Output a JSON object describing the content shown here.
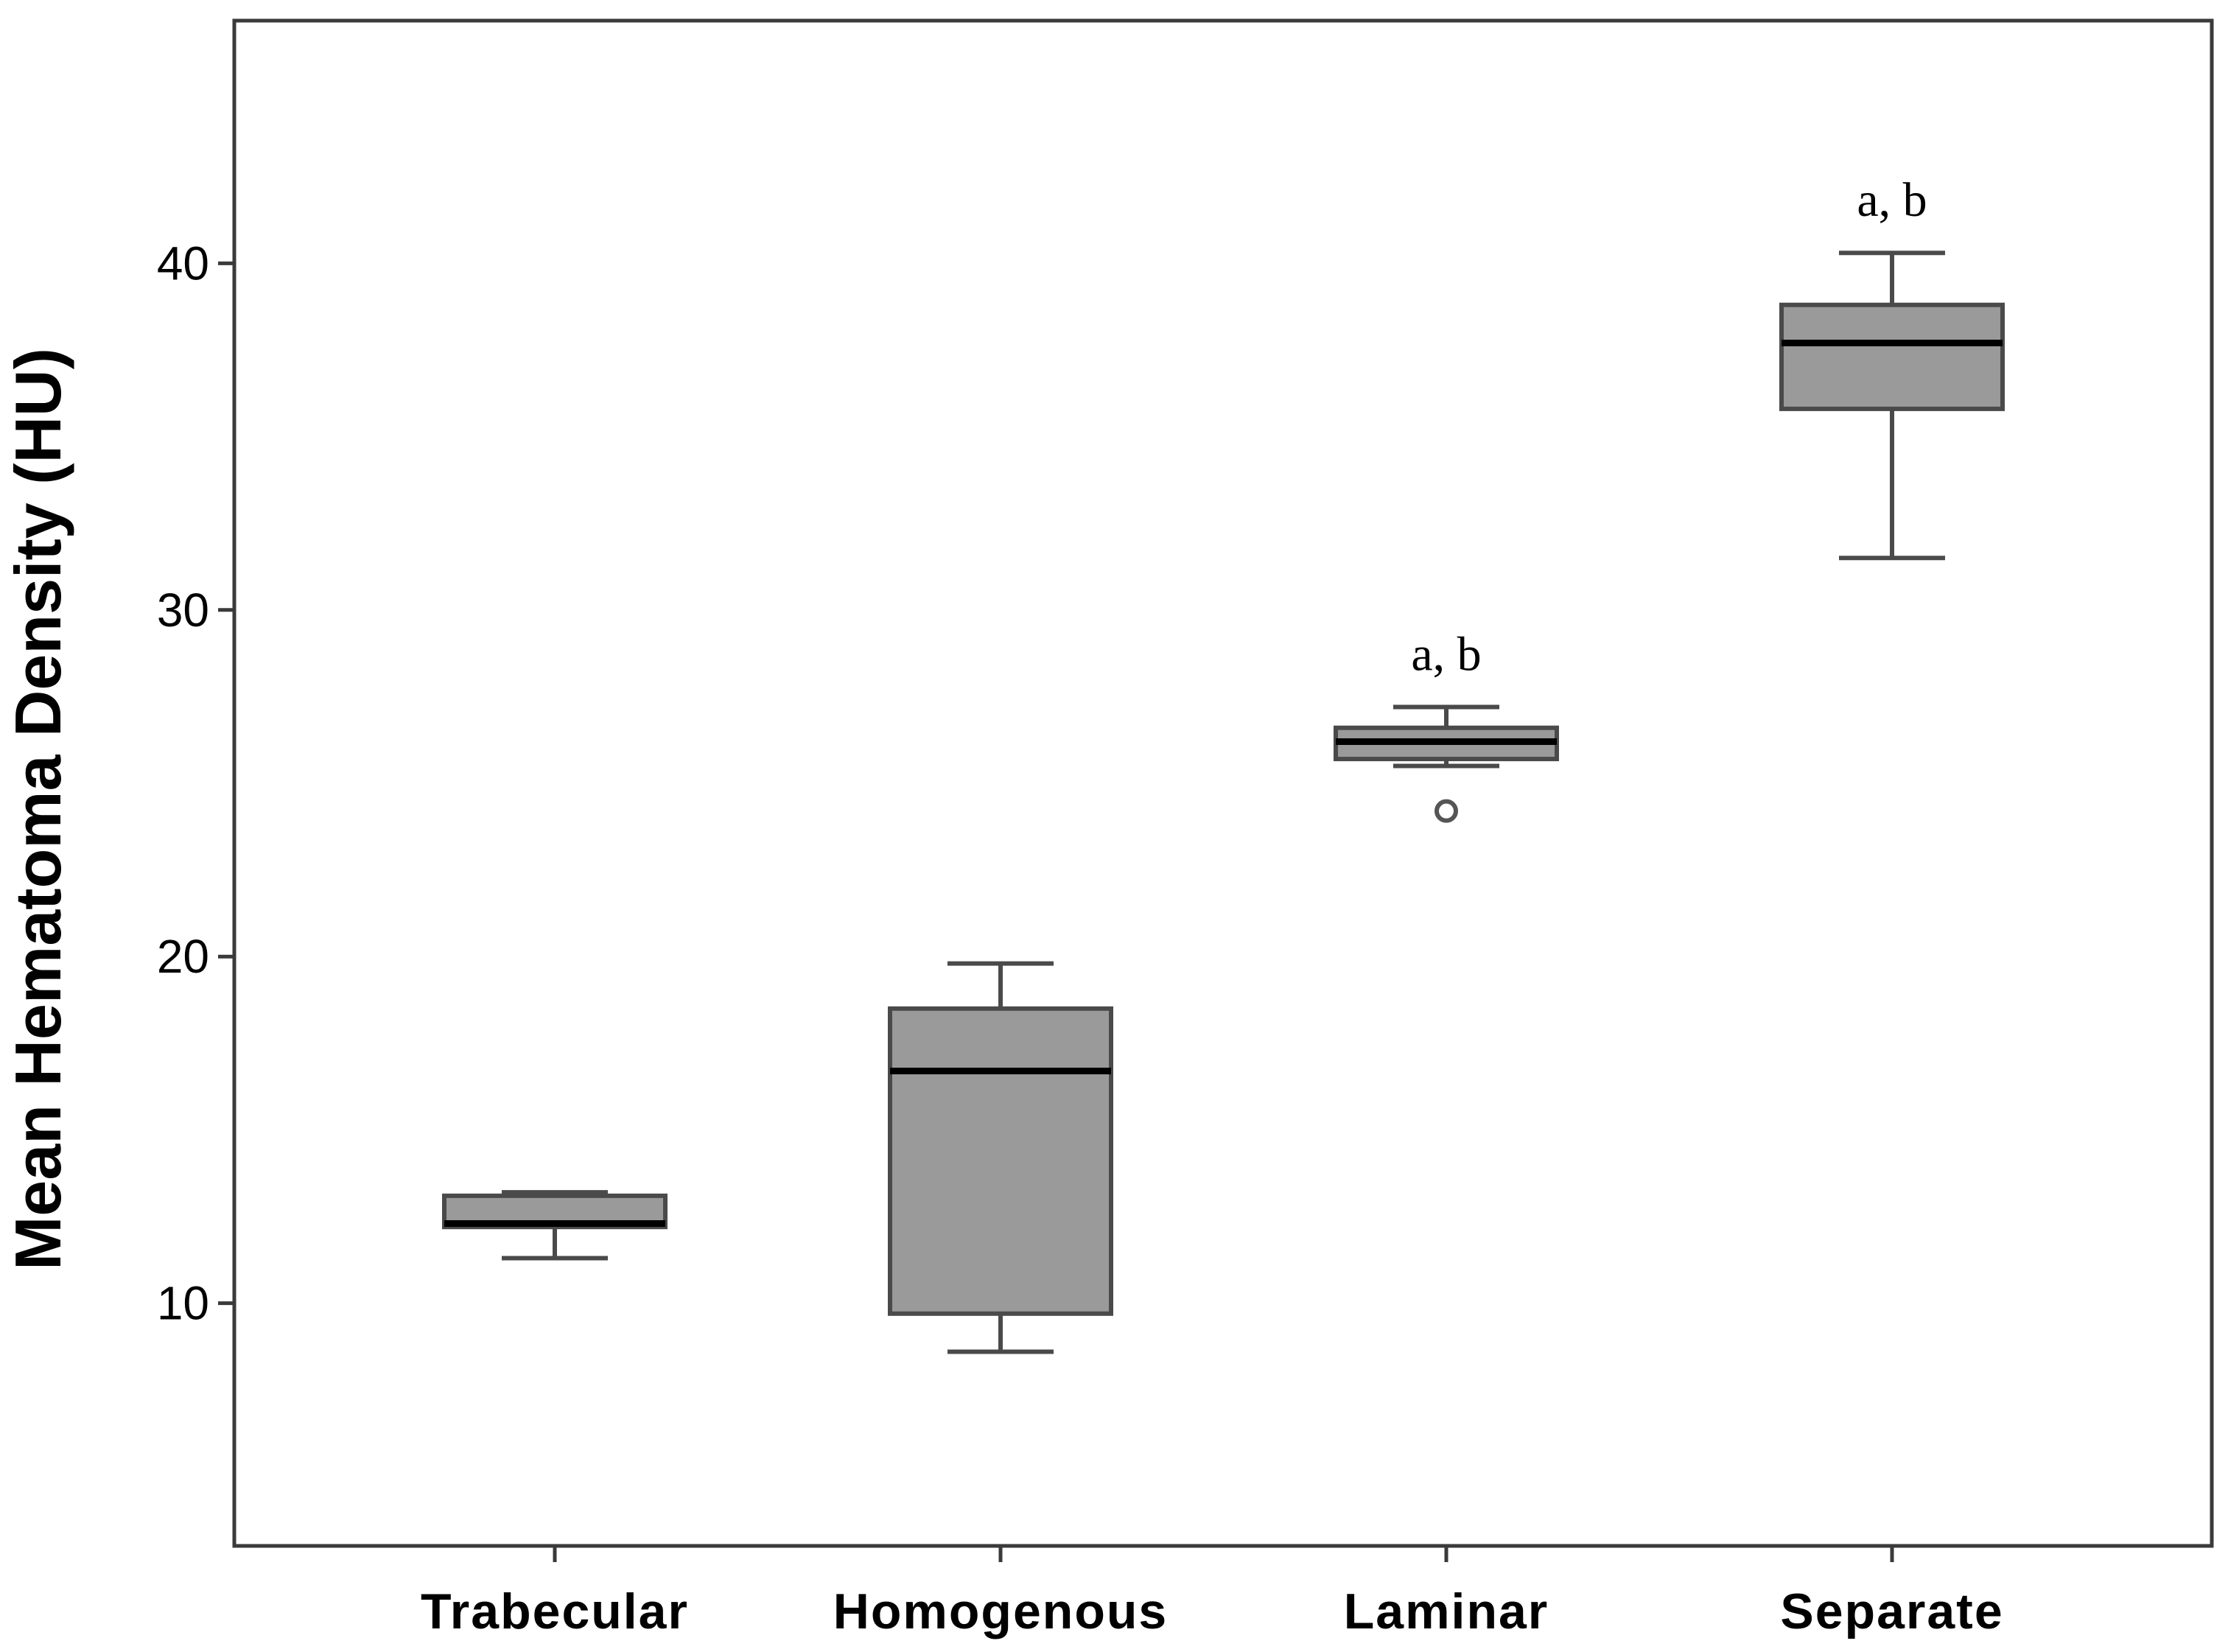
{
  "chart_data": {
    "type": "box",
    "ylabel": "Mean Hematoma Density (HU)",
    "ylim": [
      3,
      47
    ],
    "yticks": [
      10,
      20,
      30,
      40
    ],
    "categories": [
      "Trabecular",
      "Homogenous",
      "Laminar",
      "Separate"
    ],
    "boxes": [
      {
        "category": "Trabecular",
        "min": 11.3,
        "q1": 12.2,
        "median": 12.3,
        "q3": 13.1,
        "max": 13.2,
        "outliers": [],
        "annotation": ""
      },
      {
        "category": "Homogenous",
        "min": 8.6,
        "q1": 9.7,
        "median": 16.7,
        "q3": 18.5,
        "max": 19.8,
        "outliers": [],
        "annotation": ""
      },
      {
        "category": "Laminar",
        "min": 25.5,
        "q1": 25.7,
        "median": 26.2,
        "q3": 26.6,
        "max": 27.2,
        "outliers": [
          24.2
        ],
        "annotation": "a, b"
      },
      {
        "category": "Separate",
        "min": 31.5,
        "q1": 35.8,
        "median": 37.7,
        "q3": 38.8,
        "max": 40.3,
        "outliers": [],
        "annotation": "a, b"
      }
    ],
    "colors": {
      "box_fill": "#9a9a9a",
      "box_stroke": "#4a4a4a",
      "median": "#000000",
      "frame": "#3a3a3a"
    },
    "grid": false,
    "legend": "none"
  }
}
